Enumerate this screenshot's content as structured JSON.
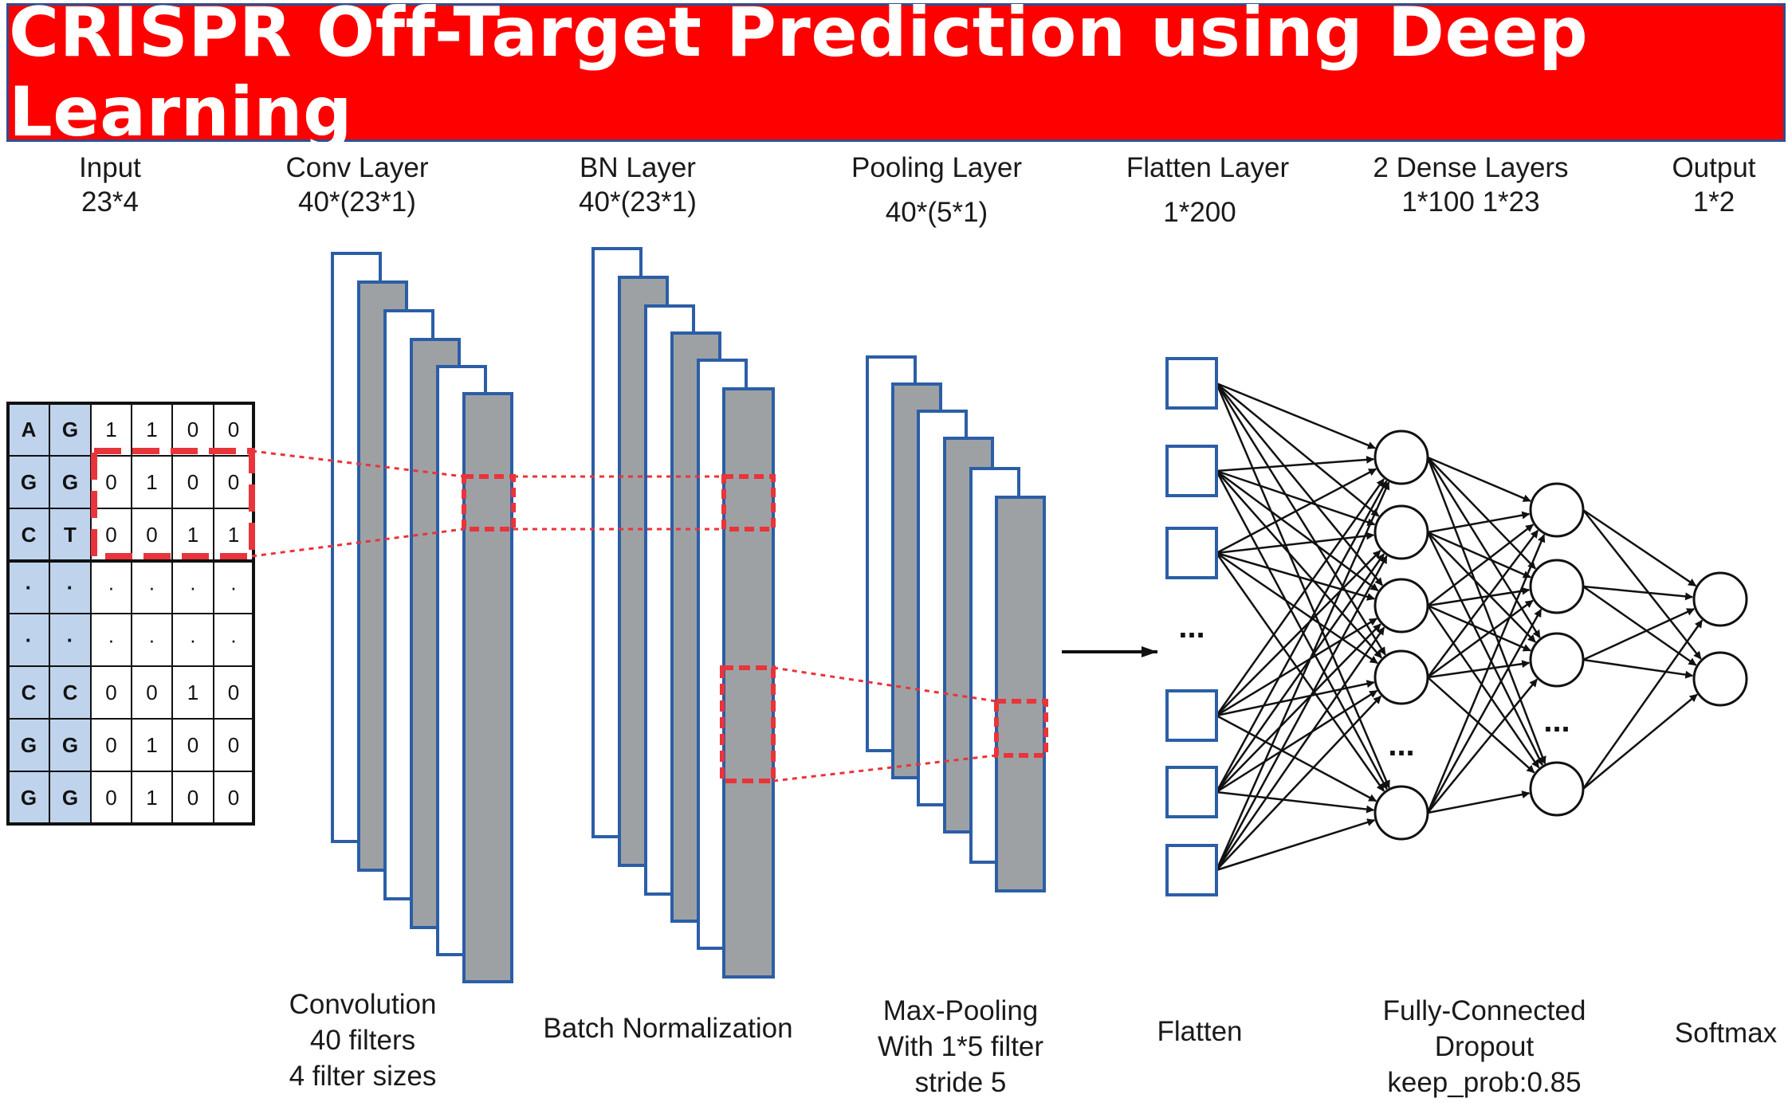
{
  "title": "CRISPR Off-Target Prediction using Deep Learning",
  "colors": {
    "banner": "#ff0000",
    "layer_fill": "#9ea1a4",
    "layer_stroke": "#2b5ea6",
    "highlight": "#e8343a",
    "matrix_blue": "#bfd3ec"
  },
  "layers": [
    {
      "name": "Input",
      "dims": "23*4"
    },
    {
      "name": "Conv Layer",
      "dims": "40*(23*1)"
    },
    {
      "name": "BN Layer",
      "dims": "40*(23*1)"
    },
    {
      "name": "Pooling Layer",
      "dims": "40*(5*1)"
    },
    {
      "name": "Flatten Layer",
      "dims": "1*200"
    },
    {
      "name": "2 Dense Layers",
      "dims": "1*100 1*23"
    },
    {
      "name": "Output",
      "dims": "1*2"
    }
  ],
  "captions": {
    "conv": [
      "Convolution",
      "40 filters",
      "4 filter sizes"
    ],
    "bn": [
      "Batch Normalization"
    ],
    "pool": [
      "Max-Pooling",
      "With 1*5 filter",
      "stride 5"
    ],
    "flatten": [
      "Flatten"
    ],
    "dense": [
      "Fully-Connected",
      "Dropout",
      "keep_prob:0.85"
    ],
    "output": [
      "Softmax"
    ]
  },
  "input_matrix": [
    [
      "A",
      "G",
      "1",
      "1",
      "0",
      "0"
    ],
    [
      "G",
      "G",
      "0",
      "1",
      "0",
      "0"
    ],
    [
      "C",
      "T",
      "0",
      "0",
      "1",
      "1"
    ],
    [
      "·",
      "·",
      "·",
      "·",
      "·",
      "·"
    ],
    [
      "·",
      "·",
      "·",
      "·",
      "·",
      "·"
    ],
    [
      "C",
      "C",
      "0",
      "0",
      "1",
      "0"
    ],
    [
      "G",
      "G",
      "0",
      "1",
      "0",
      "0"
    ],
    [
      "G",
      "G",
      "0",
      "1",
      "0",
      "0"
    ]
  ],
  "ellipsis": "..."
}
